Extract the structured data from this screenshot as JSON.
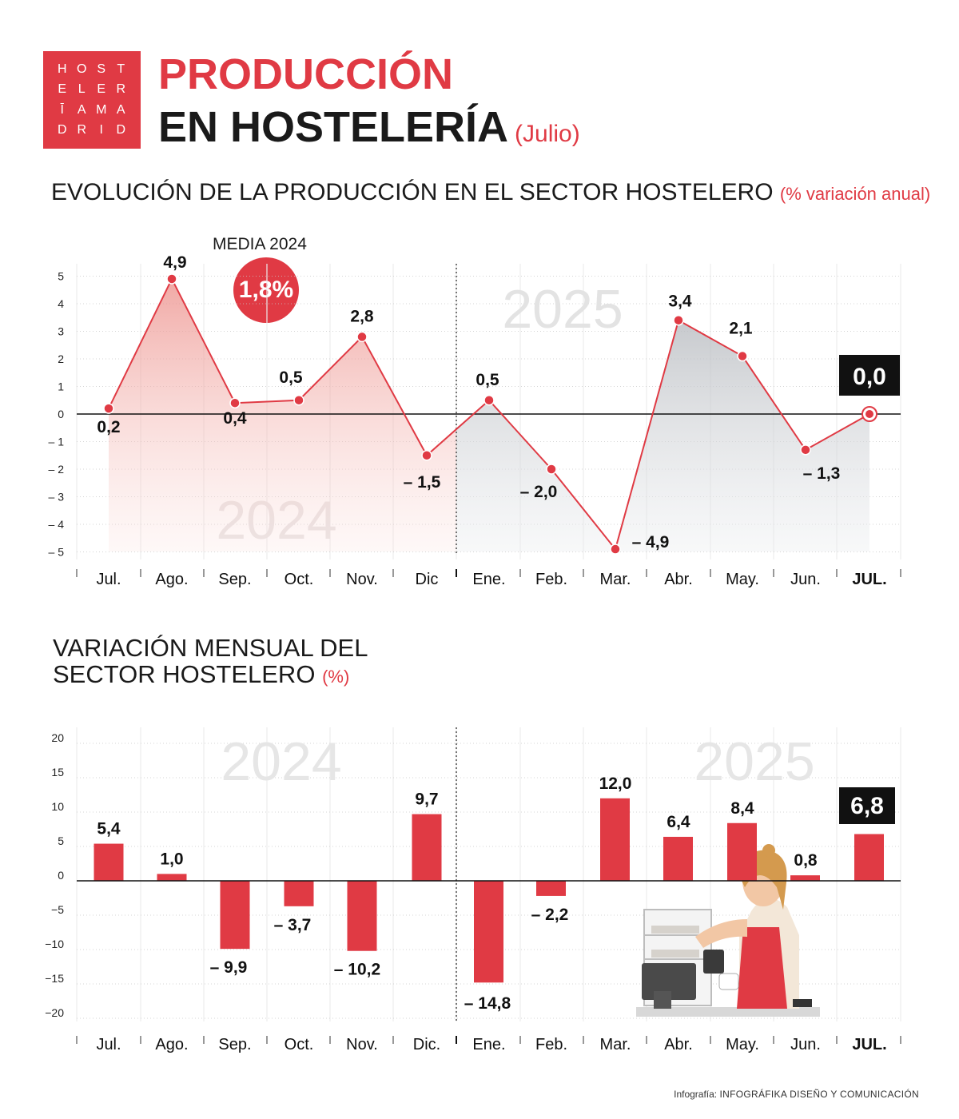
{
  "logo": {
    "letters": [
      "H",
      "O",
      "S",
      "T",
      "E",
      "L",
      "E",
      "R",
      "Ī",
      "A",
      "M",
      "A",
      "D",
      "R",
      "I",
      "D"
    ]
  },
  "header": {
    "title_line1": "PRODUCCIÓN",
    "title_line2": "EN HOSTELERÍA",
    "month": "(Julio)"
  },
  "section1": {
    "title": "EVOLUCIÓN DE LA PRODUCCIÓN EN EL SECTOR HOSTELERO",
    "unit": "(% variación anual)"
  },
  "average": {
    "label": "MEDIA 2024",
    "value": "1,8%"
  },
  "section2": {
    "title_line1": "VARIACIÓN MENSUAL DEL",
    "title_line2": "SECTOR HOSTELERO",
    "unit": "(%)"
  },
  "credit": {
    "prefix": "Infografía:",
    "author": "INFOGRÁFIKA DISEÑO Y COMUNICACIÓN"
  },
  "colors": {
    "accent": "#e03a44",
    "grey_area": "#d9dbde",
    "text": "#1a1a1a"
  },
  "chart_data": [
    {
      "type": "line",
      "title": "EVOLUCIÓN DE LA PRODUCCIÓN EN EL SECTOR HOSTELERO",
      "unit": "% variación anual",
      "categories": [
        "Jul.",
        "Ago.",
        "Sep.",
        "Oct.",
        "Nov.",
        "Dic",
        "Ene.",
        "Feb.",
        "Mar.",
        "Abr.",
        "May.",
        "Jun.",
        "JUL."
      ],
      "values": [
        0.2,
        4.9,
        0.4,
        0.5,
        2.8,
        -1.5,
        0.5,
        -2.0,
        -4.9,
        3.4,
        2.1,
        -1.3,
        0.0
      ],
      "labels": [
        "0,2",
        "4,9",
        "0,4",
        "0,5",
        "2,8",
        "– 1,5",
        "0,5",
        "– 2,0",
        "– 4,9",
        "3,4",
        "2,1",
        "– 1,3",
        "0,0"
      ],
      "yticks": [
        5,
        4,
        3,
        2,
        1,
        0,
        -1,
        -2,
        -3,
        -4,
        -5
      ],
      "ytick_labels": [
        "5",
        "4",
        "3",
        "2",
        "1",
        "0",
        "– 1",
        "– 2",
        "– 3",
        "– 4",
        "– 5"
      ],
      "ylim": [
        -5,
        5
      ],
      "year_labels": [
        "2024",
        "2025"
      ],
      "highlight_index": 12
    },
    {
      "type": "bar",
      "title": "VARIACIÓN MENSUAL DEL SECTOR HOSTELERO",
      "unit": "%",
      "categories": [
        "Jul.",
        "Ago.",
        "Sep.",
        "Oct.",
        "Nov.",
        "Dic.",
        "Ene.",
        "Feb.",
        "Mar.",
        "Abr.",
        "May.",
        "Jun.",
        "JUL."
      ],
      "values": [
        5.4,
        1.0,
        -9.9,
        -3.7,
        -10.2,
        9.7,
        -14.8,
        -2.2,
        12.0,
        6.4,
        8.4,
        0.8,
        6.8
      ],
      "labels": [
        "5,4",
        "1,0",
        "– 9,9",
        "– 3,7",
        "– 10,2",
        "9,7",
        "– 14,8",
        "– 2,2",
        "12,0",
        "6,4",
        "8,4",
        "0,8",
        "6,8"
      ],
      "yticks": [
        20,
        15,
        10,
        5,
        0,
        -5,
        -10,
        -15,
        -20
      ],
      "ytick_labels": [
        "20",
        "15",
        "10",
        "5",
        "0",
        "−5",
        "−10",
        "−15",
        "−20"
      ],
      "ylim": [
        -20,
        20
      ],
      "year_labels": [
        "2024",
        "2025"
      ],
      "highlight_index": 12
    }
  ]
}
